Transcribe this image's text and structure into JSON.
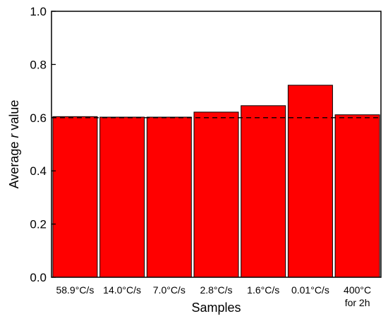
{
  "chart_data": {
    "type": "bar",
    "categories": [
      "58.9°C/s",
      "14.0°C/s",
      "7.0°C/s",
      "2.8°C/s",
      "1.6°C/s",
      "0.01°C/s",
      "400°C\nfor 2h"
    ],
    "values": [
      0.604,
      0.602,
      0.602,
      0.621,
      0.645,
      0.722,
      0.611
    ],
    "title": "",
    "xlabel": "Samples",
    "ylabel_prefix": "Average ",
    "ylabel_italic": "r",
    "ylabel_suffix": " value",
    "ylim": [
      0,
      1.0
    ],
    "yticks": [
      "0.0",
      "0.2",
      "0.4",
      "0.6",
      "0.8",
      "1.0"
    ],
    "reference_line": 0.6,
    "bar_color": "#ff0000",
    "grid": false,
    "legend": "none"
  }
}
